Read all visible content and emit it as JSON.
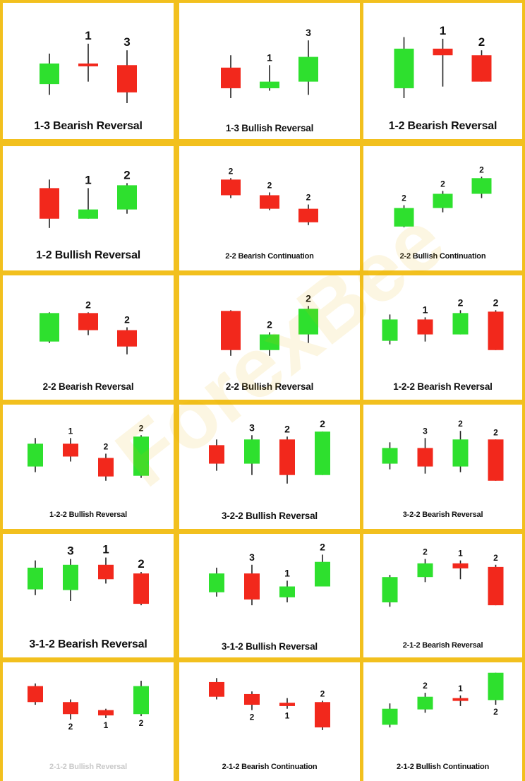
{
  "colors": {
    "bull": "#2ee02e",
    "bear": "#f2281c",
    "wick": "#222222",
    "frame": "#f2c01e"
  },
  "watermark_text": "ForexBee",
  "patterns": [
    {
      "caption": "1-3 Bearish Reversal",
      "size": "l",
      "candles": [
        {
          "o": 35,
          "c": 60,
          "h": 72,
          "l": 22
        },
        {
          "o": 60,
          "c": 58,
          "h": 84,
          "l": 38
        },
        {
          "o": 58,
          "c": 25,
          "h": 76,
          "l": 12,
          "label": "3",
          "label_pos": "top"
        }
      ],
      "extra_labels": [
        {
          "text": "1",
          "candle": 1,
          "pos": "top"
        }
      ]
    },
    {
      "caption": "1-3 Bullish Reversal",
      "size": "m",
      "candles": [
        {
          "o": 55,
          "c": 30,
          "h": 70,
          "l": 18
        },
        {
          "o": 30,
          "c": 38,
          "h": 58,
          "l": 27,
          "label": "1",
          "label_pos": "top"
        },
        {
          "o": 38,
          "c": 68,
          "h": 88,
          "l": 22,
          "label": "3",
          "label_pos": "top"
        }
      ]
    },
    {
      "caption": "1-2 Bearish Reversal",
      "size": "l",
      "candles": [
        {
          "o": 30,
          "c": 78,
          "h": 92,
          "l": 18
        },
        {
          "o": 78,
          "c": 70,
          "h": 90,
          "l": 32,
          "label": "1",
          "label_pos": "top"
        },
        {
          "o": 70,
          "c": 38,
          "h": 76,
          "l": 38,
          "label": "2",
          "label_pos": "top"
        }
      ]
    },
    {
      "caption": "1-2 Bullish Reversal",
      "size": "l",
      "candles": [
        {
          "o": 76,
          "c": 33,
          "h": 88,
          "l": 20
        },
        {
          "o": 33,
          "c": 46,
          "h": 76,
          "l": 33,
          "label": "1",
          "label_pos": "top"
        },
        {
          "o": 46,
          "c": 80,
          "h": 83,
          "l": 40,
          "label": "2",
          "label_pos": "top"
        }
      ]
    },
    {
      "caption": "2-2 Bearish Continuation",
      "size": "s",
      "candles": [
        {
          "o": 88,
          "c": 66,
          "h": 90,
          "l": 62,
          "label": "2",
          "label_pos": "top"
        },
        {
          "o": 66,
          "c": 47,
          "h": 70,
          "l": 45,
          "label": "2",
          "label_pos": "top"
        },
        {
          "o": 47,
          "c": 28,
          "h": 53,
          "l": 24,
          "label": "2",
          "label_pos": "top"
        }
      ]
    },
    {
      "caption": "2-2 Bullish Continuation",
      "size": "s",
      "candles": [
        {
          "o": 22,
          "c": 48,
          "h": 52,
          "l": 21,
          "label": "2",
          "label_pos": "top"
        },
        {
          "o": 48,
          "c": 68,
          "h": 72,
          "l": 42,
          "label": "2",
          "label_pos": "top"
        },
        {
          "o": 68,
          "c": 90,
          "h": 92,
          "l": 62,
          "label": "2",
          "label_pos": "top"
        }
      ]
    },
    {
      "caption": "2-2 Bearish Reversal",
      "size": "m",
      "candles": [
        {
          "o": 42,
          "c": 82,
          "h": 83,
          "l": 40
        },
        {
          "o": 82,
          "c": 58,
          "h": 83,
          "l": 51,
          "label": "2",
          "label_pos": "top"
        },
        {
          "o": 58,
          "c": 35,
          "h": 62,
          "l": 24,
          "label": "2",
          "label_pos": "top"
        }
      ]
    },
    {
      "caption": "2-2 Bullish Reversal",
      "size": "m",
      "candles": [
        {
          "o": 85,
          "c": 30,
          "h": 86,
          "l": 22
        },
        {
          "o": 30,
          "c": 52,
          "h": 55,
          "l": 22,
          "label": "2",
          "label_pos": "top"
        },
        {
          "o": 52,
          "c": 88,
          "h": 92,
          "l": 40,
          "label": "2",
          "label_pos": "top"
        }
      ]
    },
    {
      "caption": "1-2-2 Bearish Reversal",
      "size": "m",
      "candles": [
        {
          "o": 43,
          "c": 73,
          "h": 80,
          "l": 38
        },
        {
          "o": 73,
          "c": 52,
          "h": 76,
          "l": 42,
          "label": "1",
          "label_pos": "top"
        },
        {
          "o": 52,
          "c": 82,
          "h": 86,
          "l": 52,
          "label": "2",
          "label_pos": "top"
        },
        {
          "o": 84,
          "c": 30,
          "h": 86,
          "l": 30,
          "label": "2",
          "label_pos": "top"
        }
      ]
    },
    {
      "caption": "1-2-2 Bullish Reversal",
      "size": "s",
      "candles": [
        {
          "o": 48,
          "c": 80,
          "h": 88,
          "l": 40
        },
        {
          "o": 80,
          "c": 62,
          "h": 88,
          "l": 55,
          "label": "1",
          "label_pos": "top"
        },
        {
          "o": 60,
          "c": 34,
          "h": 66,
          "l": 28,
          "label": "2",
          "label_pos": "top"
        },
        {
          "o": 35,
          "c": 90,
          "h": 92,
          "l": 32,
          "label": "2",
          "label_pos": "top"
        }
      ]
    },
    {
      "caption": "3-2-2 Bullish Reversal",
      "size": "m",
      "candles": [
        {
          "o": 78,
          "c": 52,
          "h": 86,
          "l": 42
        },
        {
          "o": 52,
          "c": 86,
          "h": 92,
          "l": 36,
          "label": "3",
          "label_pos": "top"
        },
        {
          "o": 86,
          "c": 36,
          "h": 90,
          "l": 24,
          "label": "2",
          "label_pos": "top"
        },
        {
          "o": 36,
          "c": 97,
          "h": 97,
          "l": 36,
          "label": "2",
          "label_pos": "top"
        }
      ]
    },
    {
      "caption": "3-2-2 Bearish Reversal",
      "size": "s",
      "candles": [
        {
          "o": 52,
          "c": 74,
          "h": 82,
          "l": 44
        },
        {
          "o": 74,
          "c": 48,
          "h": 88,
          "l": 38,
          "label": "3",
          "label_pos": "top"
        },
        {
          "o": 48,
          "c": 86,
          "h": 98,
          "l": 40,
          "label": "2",
          "label_pos": "top"
        },
        {
          "o": 86,
          "c": 28,
          "h": 86,
          "l": 28,
          "label": "2",
          "label_pos": "top"
        }
      ]
    },
    {
      "caption": "3-1-2 Bearish Reversal",
      "size": "l",
      "candles": [
        {
          "o": 58,
          "c": 88,
          "h": 98,
          "l": 50
        },
        {
          "o": 57,
          "c": 92,
          "h": 100,
          "l": 42,
          "label": "3",
          "label_pos": "top"
        },
        {
          "o": 92,
          "c": 72,
          "h": 102,
          "l": 66,
          "label": "1",
          "label_pos": "top"
        },
        {
          "o": 80,
          "c": 38,
          "h": 82,
          "l": 36,
          "label": "2",
          "label_pos": "top"
        }
      ]
    },
    {
      "caption": "3-1-2 Bullish Reversal",
      "size": "m",
      "candles": [
        {
          "o": 54,
          "c": 80,
          "h": 88,
          "l": 48
        },
        {
          "o": 80,
          "c": 44,
          "h": 92,
          "l": 36,
          "label": "3",
          "label_pos": "top"
        },
        {
          "o": 47,
          "c": 62,
          "h": 70,
          "l": 40,
          "label": "1",
          "label_pos": "top"
        },
        {
          "o": 62,
          "c": 96,
          "h": 106,
          "l": 62,
          "label": "2",
          "label_pos": "top"
        }
      ]
    },
    {
      "caption": "2-1-2 Bearish Reversal",
      "size": "s",
      "candles": [
        {
          "o": 40,
          "c": 75,
          "h": 78,
          "l": 34
        },
        {
          "o": 75,
          "c": 94,
          "h": 100,
          "l": 68,
          "label": "2",
          "label_pos": "top"
        },
        {
          "o": 94,
          "c": 87,
          "h": 98,
          "l": 72,
          "label": "1",
          "label_pos": "top"
        },
        {
          "o": 89,
          "c": 36,
          "h": 92,
          "l": 36,
          "label": "2",
          "label_pos": "top"
        }
      ]
    },
    {
      "caption": "2-1-2 Bullish Reversal",
      "size": "s",
      "faded": true,
      "candles": [
        {
          "o": 100,
          "c": 76,
          "h": 104,
          "l": 72
        },
        {
          "o": 76,
          "c": 58,
          "h": 80,
          "l": 50,
          "label": "2",
          "label_pos": "bottom"
        },
        {
          "o": 64,
          "c": 56,
          "h": 66,
          "l": 52,
          "label": "1",
          "label_pos": "bottom"
        },
        {
          "o": 58,
          "c": 100,
          "h": 108,
          "l": 55,
          "label": "2",
          "label_pos": "bottom"
        }
      ]
    },
    {
      "caption": "2-1-2 Bearish Continuation",
      "size": "s",
      "candles": [
        {
          "o": 106,
          "c": 84,
          "h": 112,
          "l": 80
        },
        {
          "o": 88,
          "c": 72,
          "h": 92,
          "l": 64,
          "label": "2",
          "label_pos": "bottom"
        },
        {
          "o": 75,
          "c": 70,
          "h": 82,
          "l": 66,
          "label": "1",
          "label_pos": "bottom"
        },
        {
          "o": 76,
          "c": 38,
          "h": 78,
          "l": 34,
          "label": "2",
          "label_pos": "top"
        }
      ]
    },
    {
      "caption": "2-1-2 Bullish Continuation",
      "size": "s",
      "candles": [
        {
          "o": 42,
          "c": 66,
          "h": 74,
          "l": 38
        },
        {
          "o": 65,
          "c": 84,
          "h": 90,
          "l": 60,
          "label": "2",
          "label_pos": "top"
        },
        {
          "o": 82,
          "c": 79,
          "h": 86,
          "l": 70,
          "label": "1",
          "label_pos": "top"
        },
        {
          "o": 79,
          "c": 120,
          "h": 120,
          "l": 72,
          "label": "2",
          "label_pos": "bottom"
        }
      ]
    }
  ]
}
